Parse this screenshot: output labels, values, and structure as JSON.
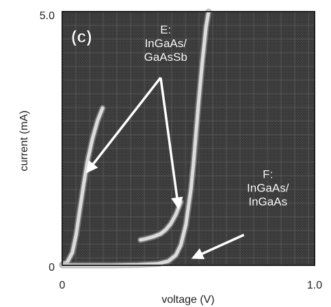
{
  "chart_data": {
    "type": "line",
    "panel_label": "(c)",
    "xlabel": "voltage (V)",
    "ylabel": "current (mA)",
    "xlim": [
      0,
      1.0
    ],
    "ylim": [
      0,
      5.0
    ],
    "x_tick_labels": [
      "0",
      "1.0"
    ],
    "y_tick_labels": [
      "0",
      "5.0"
    ],
    "grid": true,
    "colors": {
      "plot_background": "#3b3b3b",
      "grid": "#6a6a6a",
      "curve": "#dcdcdc",
      "annotation_text": "#ffffff",
      "arrow": "#ffffff"
    },
    "series": [
      {
        "name": "E: InGaAs/ GaAsSb",
        "x": [
          0.0,
          0.02,
          0.04,
          0.055,
          0.07,
          0.085,
          0.1,
          0.12,
          0.14,
          0.16
        ],
        "y": [
          0.02,
          0.06,
          0.25,
          0.6,
          1.1,
          1.6,
          2.05,
          2.5,
          2.85,
          3.1
        ]
      },
      {
        "name": "E: InGaAs/ GaAsSb",
        "x": [
          0.31,
          0.33,
          0.36,
          0.39,
          0.41,
          0.43,
          0.45,
          0.47
        ],
        "y": [
          0.5,
          0.52,
          0.56,
          0.62,
          0.7,
          0.82,
          1.0,
          1.25
        ]
      },
      {
        "name": "F: InGaAs/ InGaAs",
        "x": [
          0.0,
          0.1,
          0.2,
          0.3,
          0.38,
          0.42,
          0.45,
          0.47,
          0.49,
          0.51,
          0.52,
          0.53,
          0.54,
          0.555,
          0.57,
          0.58
        ],
        "y": [
          0.0,
          0.0,
          0.0,
          0.01,
          0.03,
          0.08,
          0.2,
          0.4,
          0.8,
          1.5,
          2.0,
          2.6,
          3.2,
          4.0,
          4.7,
          5.0
        ]
      }
    ],
    "annotations": [
      {
        "label_lines": [
          "E:",
          "InGaAs/",
          "GaAsSb"
        ],
        "text_at": [
          0.41,
          4.3
        ],
        "arrows": [
          {
            "from": [
              0.39,
              3.7
            ],
            "to": [
              0.1,
              1.85
            ]
          },
          {
            "from": [
              0.39,
              3.7
            ],
            "to": [
              0.46,
              1.15
            ]
          }
        ]
      },
      {
        "label_lines": [
          "F:",
          "InGaAs/",
          "InGaAs"
        ],
        "text_at": [
          0.815,
          1.45
        ],
        "arrows": [
          {
            "from": [
              0.72,
              0.6
            ],
            "to": [
              0.52,
              0.15
            ]
          }
        ]
      }
    ]
  }
}
